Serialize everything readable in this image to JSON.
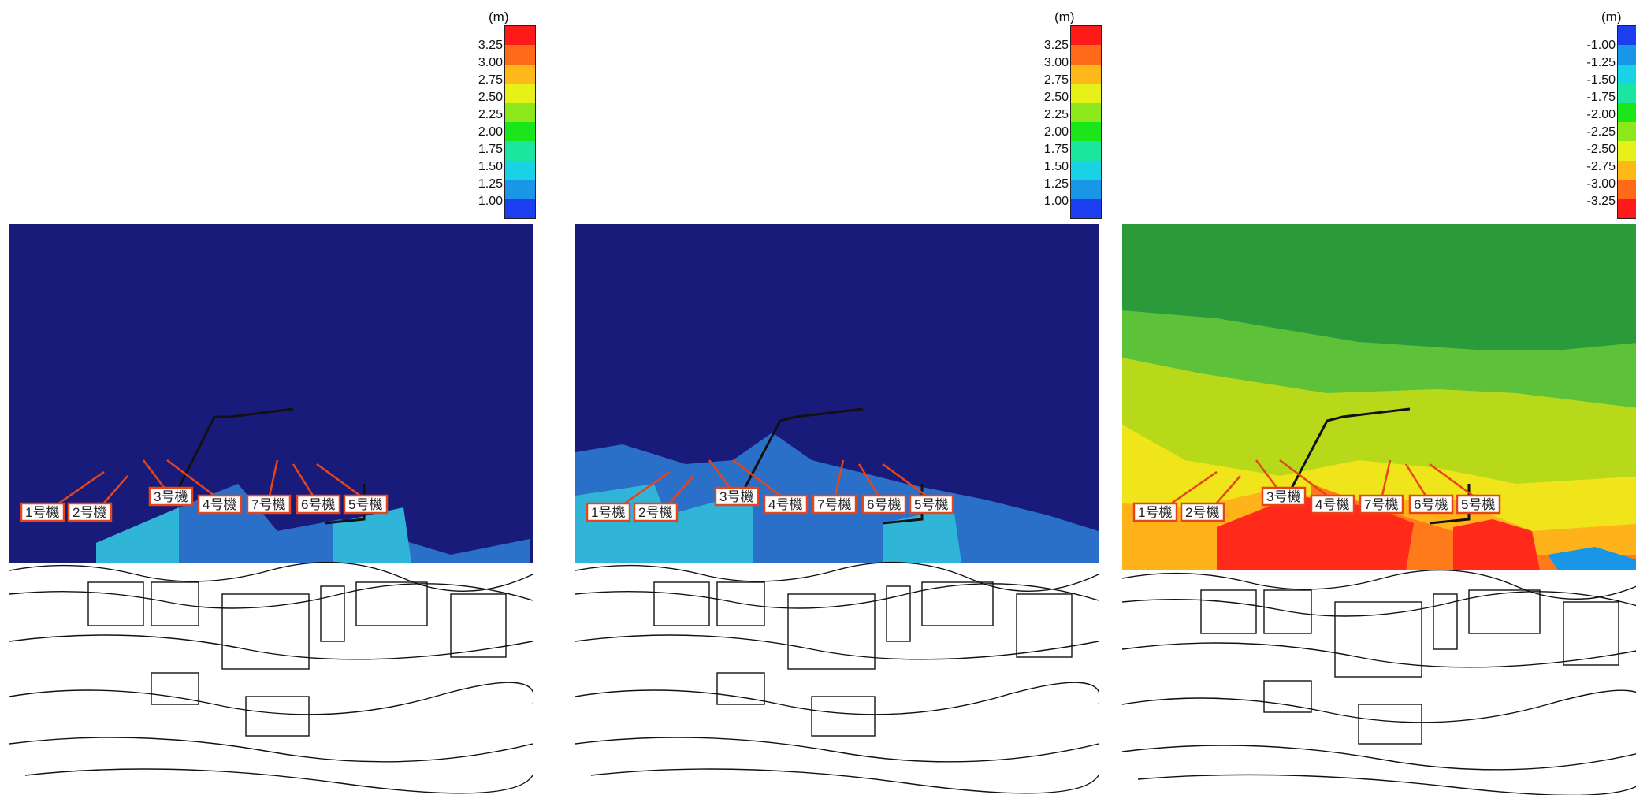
{
  "panels": [
    {
      "legend": {
        "unit": "(m)",
        "ticks": [
          "3.25",
          "3.00",
          "2.75",
          "2.50",
          "2.25",
          "2.00",
          "1.75",
          "1.50",
          "1.25",
          "1.00"
        ],
        "colors_top_to_bottom": [
          "#ff1a1a",
          "#ff6a1a",
          "#ffb81a",
          "#e8f01a",
          "#8ce81a",
          "#1ae61a",
          "#1ae6a0",
          "#1ad2e6",
          "#1a96e6",
          "#1a3ef0"
        ]
      },
      "units": [
        "1号機",
        "2号機",
        "3号機",
        "4号機",
        "7号機",
        "6号機",
        "5号機"
      ]
    },
    {
      "legend": {
        "unit": "(m)",
        "ticks": [
          "3.25",
          "3.00",
          "2.75",
          "2.50",
          "2.25",
          "2.00",
          "1.75",
          "1.50",
          "1.25",
          "1.00"
        ],
        "colors_top_to_bottom": [
          "#ff1a1a",
          "#ff6a1a",
          "#ffb81a",
          "#e8f01a",
          "#8ce81a",
          "#1ae61a",
          "#1ae6a0",
          "#1ad2e6",
          "#1a96e6",
          "#1a3ef0"
        ]
      },
      "units": [
        "1号機",
        "2号機",
        "3号機",
        "4号機",
        "7号機",
        "6号機",
        "5号機"
      ]
    },
    {
      "legend": {
        "unit": "(m)",
        "ticks": [
          "-1.00",
          "-1.25",
          "-1.50",
          "-1.75",
          "-2.00",
          "-2.25",
          "-2.50",
          "-2.75",
          "-3.00",
          "-3.25"
        ],
        "colors_top_to_bottom": [
          "#1a3ef0",
          "#1a96e6",
          "#1ad2e6",
          "#1ae6a0",
          "#1ae61a",
          "#8ce81a",
          "#e8f01a",
          "#ffb81a",
          "#ff6a1a",
          "#ff1a1a"
        ]
      },
      "units": [
        "1号機",
        "2号機",
        "3号機",
        "4号機",
        "7号機",
        "6号機",
        "5号機"
      ]
    }
  ]
}
